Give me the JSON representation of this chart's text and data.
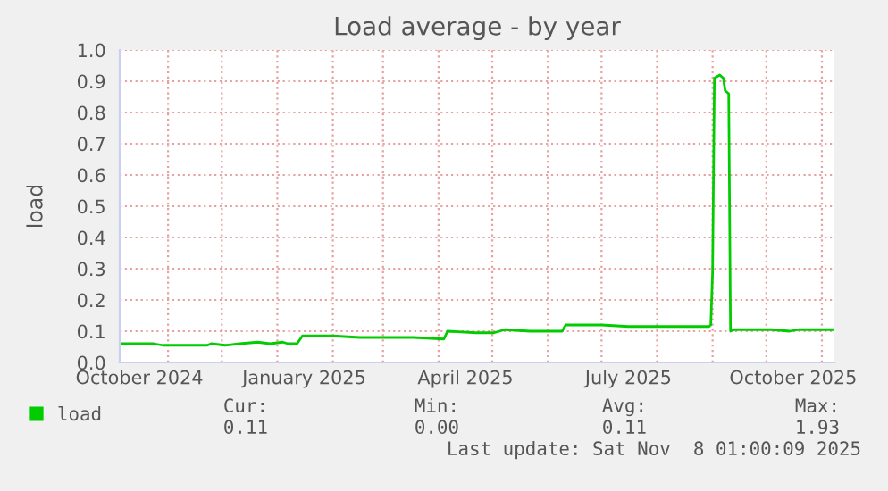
{
  "chart_data": {
    "type": "line",
    "title": "Load average - by year",
    "ylabel": "load",
    "xlim": [
      "2024-10-05",
      "2025-11-08"
    ],
    "ylim": [
      0,
      1.0
    ],
    "yticks": [
      {
        "value": 0,
        "label": "0.0"
      },
      {
        "value": 0.1,
        "label": "0.1"
      },
      {
        "value": 0.2,
        "label": "0.2"
      },
      {
        "value": 0.3,
        "label": "0.3"
      },
      {
        "value": 0.4,
        "label": "0.4"
      },
      {
        "value": 0.5,
        "label": "0.5"
      },
      {
        "value": 0.6,
        "label": "0.6"
      },
      {
        "value": 0.7,
        "label": "0.7"
      },
      {
        "value": 0.8,
        "label": "0.8"
      },
      {
        "value": 0.9,
        "label": "0.9"
      },
      {
        "value": 1.0,
        "label": "1.0"
      }
    ],
    "xticks": [
      {
        "value": "2024-10-16",
        "label": "October 2024"
      },
      {
        "value": "2024-11-01",
        "label": null
      },
      {
        "value": "2024-12-01",
        "label": null
      },
      {
        "value": "2025-01-01",
        "label": null
      },
      {
        "value": "2025-01-16",
        "label": "January 2025"
      },
      {
        "value": "2025-02-01",
        "label": null
      },
      {
        "value": "2025-03-01",
        "label": null
      },
      {
        "value": "2025-04-01",
        "label": null
      },
      {
        "value": "2025-04-16",
        "label": "April 2025"
      },
      {
        "value": "2025-05-01",
        "label": null
      },
      {
        "value": "2025-06-01",
        "label": null
      },
      {
        "value": "2025-07-01",
        "label": null
      },
      {
        "value": "2025-07-16",
        "label": "July 2025"
      },
      {
        "value": "2025-08-01",
        "label": null
      },
      {
        "value": "2025-09-01",
        "label": null
      },
      {
        "value": "2025-10-01",
        "label": null
      },
      {
        "value": "2025-10-16",
        "label": "October 2025"
      },
      {
        "value": "2025-11-01",
        "label": null
      }
    ],
    "grid": true,
    "legend": "bottom left",
    "marker": "none",
    "line_style": "solid",
    "x": [
      "2024-10-06",
      "2024-10-24",
      "2024-10-29",
      "2024-11-23",
      "2024-11-25",
      "2024-12-03",
      "2024-12-11",
      "2024-12-21",
      "2024-12-28",
      "2025-01-04",
      "2025-01-07",
      "2025-01-12",
      "2025-01-15",
      "2025-02-01",
      "2025-02-16",
      "2025-03-03",
      "2025-03-18",
      "2025-04-04",
      "2025-04-06",
      "2025-04-22",
      "2025-05-02",
      "2025-05-08",
      "2025-05-22",
      "2025-06-09",
      "2025-06-11",
      "2025-07-01",
      "2025-07-16",
      "2025-08-05",
      "2025-08-30",
      "2025-08-31",
      "2025-09-01",
      "2025-09-02",
      "2025-09-05",
      "2025-09-07",
      "2025-09-08",
      "2025-09-10",
      "2025-09-11",
      "2025-09-13",
      "2025-10-04",
      "2025-10-14",
      "2025-10-19",
      "2025-11-08"
    ],
    "series": [
      {
        "name": "load",
        "color": "#00cc00",
        "values": [
          0.06,
          0.06,
          0.055,
          0.055,
          0.06,
          0.055,
          0.06,
          0.065,
          0.06,
          0.065,
          0.06,
          0.06,
          0.085,
          0.085,
          0.08,
          0.08,
          0.08,
          0.075,
          0.1,
          0.095,
          0.095,
          0.105,
          0.1,
          0.1,
          0.12,
          0.12,
          0.115,
          0.115,
          0.115,
          0.12,
          0.29,
          0.91,
          0.92,
          0.91,
          0.87,
          0.86,
          0.1,
          0.105,
          0.105,
          0.1,
          0.105,
          0.105
        ]
      }
    ],
    "annotations": [
      "Cur:",
      "0.11",
      "Min:",
      "0.00",
      "Avg:",
      "0.11",
      "Max:",
      "1.93",
      "Last update: Sat Nov  8 01:00:09 2025"
    ]
  }
}
